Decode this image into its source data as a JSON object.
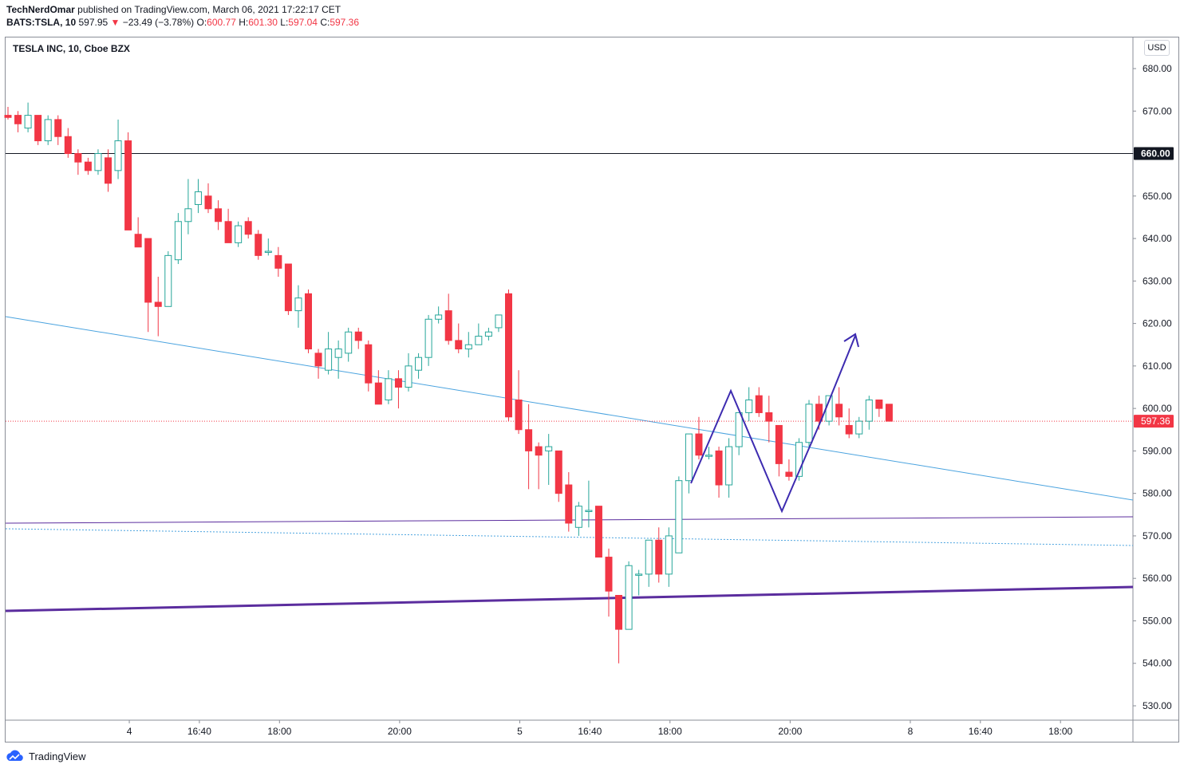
{
  "header": {
    "author": "TechNerdOmar",
    "published_text": "published on TradingView.com, March 06, 2021 17:22:17 CET",
    "symbol": "BATS:TSLA, 10",
    "last": "597.95",
    "change": "−23.49 (−3.78%)",
    "o_label": "O:",
    "o": "600.77",
    "h_label": "H:",
    "h": "601.30",
    "l_label": "L:",
    "l": "597.04",
    "c_label": "C:",
    "c": "597.36"
  },
  "chart_title": "TESLA INC, 10, Cboe BZX",
  "currency": "USD",
  "footer": {
    "brand": "TradingView"
  },
  "colors": {
    "up": "#26a69a",
    "up_fill": "#ffffff",
    "down": "#f23645",
    "trend_blue": "#4aa3df",
    "purple": "#5b2d9e",
    "pattern": "#3d2bb0"
  },
  "chart_data": {
    "type": "candlestick",
    "title": "TESLA INC, 10, Cboe BZX",
    "ylim": [
      525,
      685
    ],
    "y_ticks": [
      680,
      670,
      660,
      650,
      640,
      630,
      620,
      610,
      600,
      590,
      580,
      570,
      560,
      550,
      540,
      530
    ],
    "x_ticks": [
      {
        "label": "4",
        "index": 11
      },
      {
        "label": "16:40",
        "index": 18
      },
      {
        "label": "18:00",
        "index": 26
      },
      {
        "label": "20:00",
        "index": 38
      },
      {
        "label": "5",
        "index": 50
      },
      {
        "label": "16:40",
        "index": 57
      },
      {
        "label": "18:00",
        "index": 65
      },
      {
        "label": "20:00",
        "index": 77
      },
      {
        "label": "8",
        "index": 89
      },
      {
        "label": "16:40",
        "index": 96
      },
      {
        "label": "18:00",
        "index": 104
      }
    ],
    "candles": [
      {
        "o": 669,
        "h": 671,
        "l": 668,
        "c": 668.5
      },
      {
        "o": 669,
        "h": 670,
        "l": 665,
        "c": 667
      },
      {
        "o": 666,
        "h": 672,
        "l": 665,
        "c": 669
      },
      {
        "o": 669,
        "h": 669,
        "l": 662,
        "c": 663
      },
      {
        "o": 663,
        "h": 669,
        "l": 662,
        "c": 668
      },
      {
        "o": 668,
        "h": 669,
        "l": 662,
        "c": 664
      },
      {
        "o": 664,
        "h": 666,
        "l": 659,
        "c": 660
      },
      {
        "o": 660,
        "h": 661,
        "l": 655,
        "c": 658
      },
      {
        "o": 658,
        "h": 659,
        "l": 655,
        "c": 656
      },
      {
        "o": 656,
        "h": 661,
        "l": 655,
        "c": 660
      },
      {
        "o": 659,
        "h": 661,
        "l": 651,
        "c": 653
      },
      {
        "o": 656,
        "h": 668,
        "l": 654,
        "c": 663
      },
      {
        "o": 663,
        "h": 665,
        "l": 642,
        "c": 642
      },
      {
        "o": 641,
        "h": 645,
        "l": 638,
        "c": 638
      },
      {
        "o": 640,
        "h": 640,
        "l": 618,
        "c": 625
      },
      {
        "o": 625,
        "h": 631,
        "l": 617,
        "c": 624
      },
      {
        "o": 624,
        "h": 637,
        "l": 624,
        "c": 636
      },
      {
        "o": 635,
        "h": 646,
        "l": 634,
        "c": 644
      },
      {
        "o": 644,
        "h": 654,
        "l": 641,
        "c": 647
      },
      {
        "o": 648,
        "h": 654,
        "l": 646,
        "c": 651
      },
      {
        "o": 650,
        "h": 653,
        "l": 646,
        "c": 647
      },
      {
        "o": 647,
        "h": 649,
        "l": 642,
        "c": 644
      },
      {
        "o": 644,
        "h": 647,
        "l": 639,
        "c": 639
      },
      {
        "o": 639,
        "h": 644,
        "l": 638,
        "c": 643
      },
      {
        "o": 644,
        "h": 645,
        "l": 640,
        "c": 641
      },
      {
        "o": 641,
        "h": 642,
        "l": 635,
        "c": 636
      },
      {
        "o": 637,
        "h": 640,
        "l": 636,
        "c": 637
      },
      {
        "o": 636,
        "h": 638,
        "l": 631,
        "c": 633
      },
      {
        "o": 634,
        "h": 634,
        "l": 622,
        "c": 623
      },
      {
        "o": 623,
        "h": 629,
        "l": 619,
        "c": 626
      },
      {
        "o": 627,
        "h": 628,
        "l": 613,
        "c": 614
      },
      {
        "o": 613,
        "h": 614,
        "l": 607,
        "c": 610
      },
      {
        "o": 609,
        "h": 618,
        "l": 608,
        "c": 614
      },
      {
        "o": 612,
        "h": 616,
        "l": 607,
        "c": 614
      },
      {
        "o": 613,
        "h": 619,
        "l": 611,
        "c": 618
      },
      {
        "o": 618,
        "h": 619,
        "l": 614,
        "c": 616
      },
      {
        "o": 615,
        "h": 616,
        "l": 604,
        "c": 606
      },
      {
        "o": 606,
        "h": 609,
        "l": 601,
        "c": 601
      },
      {
        "o": 602,
        "h": 609,
        "l": 601,
        "c": 607
      },
      {
        "o": 607,
        "h": 609,
        "l": 600,
        "c": 605
      },
      {
        "o": 605,
        "h": 613,
        "l": 604,
        "c": 610
      },
      {
        "o": 609,
        "h": 613,
        "l": 607,
        "c": 612
      },
      {
        "o": 612,
        "h": 622,
        "l": 610,
        "c": 621
      },
      {
        "o": 621,
        "h": 624,
        "l": 620,
        "c": 622
      },
      {
        "o": 623,
        "h": 627,
        "l": 615,
        "c": 616
      },
      {
        "o": 616,
        "h": 620,
        "l": 613,
        "c": 614
      },
      {
        "o": 614,
        "h": 618,
        "l": 612,
        "c": 615
      },
      {
        "o": 615,
        "h": 620,
        "l": 615,
        "c": 617
      },
      {
        "o": 617,
        "h": 619,
        "l": 616,
        "c": 618
      },
      {
        "o": 619,
        "h": 622,
        "l": 618,
        "c": 622
      },
      {
        "o": 627,
        "h": 628,
        "l": 597,
        "c": 598
      },
      {
        "o": 602,
        "h": 609,
        "l": 594,
        "c": 595
      },
      {
        "o": 595,
        "h": 601,
        "l": 581,
        "c": 590
      },
      {
        "o": 591,
        "h": 592,
        "l": 581,
        "c": 589
      },
      {
        "o": 590,
        "h": 594,
        "l": 582,
        "c": 591
      },
      {
        "o": 590,
        "h": 590,
        "l": 578,
        "c": 580
      },
      {
        "o": 582,
        "h": 585,
        "l": 571,
        "c": 573
      },
      {
        "o": 572,
        "h": 578,
        "l": 570,
        "c": 577
      },
      {
        "o": 576,
        "h": 583,
        "l": 572,
        "c": 576
      },
      {
        "o": 577,
        "h": 577,
        "l": 565,
        "c": 565
      },
      {
        "o": 565,
        "h": 567,
        "l": 551,
        "c": 557
      },
      {
        "o": 556,
        "h": 556,
        "l": 540,
        "c": 548
      },
      {
        "o": 548,
        "h": 564,
        "l": 548,
        "c": 563
      },
      {
        "o": 561,
        "h": 562,
        "l": 556,
        "c": 561
      },
      {
        "o": 561,
        "h": 569,
        "l": 558,
        "c": 569
      },
      {
        "o": 569,
        "h": 572,
        "l": 559,
        "c": 561
      },
      {
        "o": 561,
        "h": 572,
        "l": 558,
        "c": 570
      },
      {
        "o": 566,
        "h": 584,
        "l": 566,
        "c": 583
      },
      {
        "o": 583,
        "h": 594,
        "l": 580,
        "c": 594
      },
      {
        "o": 594,
        "h": 598,
        "l": 588,
        "c": 589
      },
      {
        "o": 589,
        "h": 591,
        "l": 588,
        "c": 589
      },
      {
        "o": 590,
        "h": 591,
        "l": 579,
        "c": 582
      },
      {
        "o": 582,
        "h": 593,
        "l": 579,
        "c": 591
      },
      {
        "o": 591,
        "h": 599,
        "l": 589,
        "c": 599
      },
      {
        "o": 599,
        "h": 605,
        "l": 597,
        "c": 602
      },
      {
        "o": 603,
        "h": 605,
        "l": 598,
        "c": 599
      },
      {
        "o": 599,
        "h": 603,
        "l": 592,
        "c": 597
      },
      {
        "o": 596,
        "h": 596,
        "l": 584,
        "c": 587
      },
      {
        "o": 585,
        "h": 588,
        "l": 583,
        "c": 584
      },
      {
        "o": 584,
        "h": 593,
        "l": 583,
        "c": 592
      },
      {
        "o": 592,
        "h": 602,
        "l": 591,
        "c": 601
      },
      {
        "o": 601,
        "h": 603,
        "l": 595,
        "c": 597
      },
      {
        "o": 597,
        "h": 603,
        "l": 596,
        "c": 603
      },
      {
        "o": 601,
        "h": 605,
        "l": 596,
        "c": 598
      },
      {
        "o": 596,
        "h": 600,
        "l": 593,
        "c": 594
      },
      {
        "o": 594,
        "h": 598,
        "l": 593,
        "c": 597
      },
      {
        "o": 597,
        "h": 603,
        "l": 595,
        "c": 602
      },
      {
        "o": 602,
        "h": 602,
        "l": 598,
        "c": 600
      },
      {
        "o": 601,
        "h": 601,
        "l": 597,
        "c": 597
      }
    ]
  }
}
